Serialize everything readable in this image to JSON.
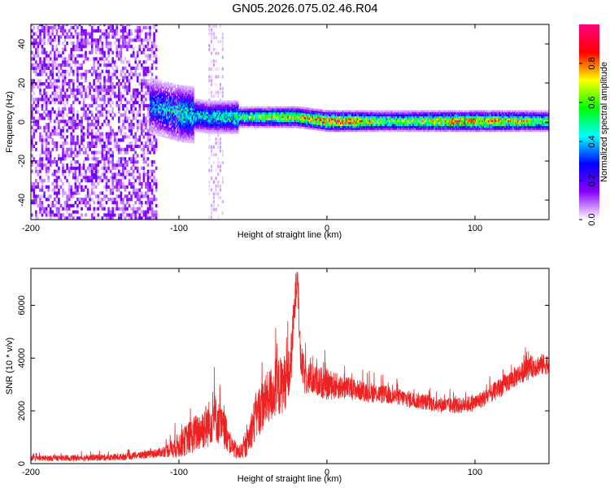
{
  "title": "GN05.2026.075.02.46.R04",
  "chart_data": [
    {
      "type": "heatmap",
      "xlabel": "Height of straight line (km)",
      "ylabel": "Frequency (Hz)",
      "xlim": [
        -200,
        150
      ],
      "ylim": [
        -50,
        50
      ],
      "xticks": [
        -200,
        -100,
        0,
        100
      ],
      "yticks": [
        -40,
        -20,
        0,
        20,
        40
      ],
      "grid": false,
      "colorbar": {
        "label": "Normalized spectral amplitude",
        "range": [
          0.0,
          1.0
        ],
        "ticks": [
          "0.0",
          "0.2",
          "0.4",
          "0.6",
          "0.8"
        ],
        "tick_values": [
          0.0,
          0.2,
          0.4,
          0.6,
          0.8
        ],
        "colors": [
          "#ffffff",
          "#8800ff",
          "#0000ff",
          "#00ffff",
          "#00ff00",
          "#ffff00",
          "#ff0000",
          "#ff0080"
        ]
      },
      "features": [
        {
          "desc": "broadband noise",
          "x_range": [
            -200,
            -115
          ],
          "y_range": [
            -50,
            50
          ],
          "amplitude": 0.15
        },
        {
          "desc": "faint vertical streak",
          "x_range": [
            -80,
            -70
          ],
          "y_range": [
            -50,
            50
          ],
          "amplitude": 0.05
        },
        {
          "desc": "signal band",
          "x": [
            -120,
            -100,
            -80,
            -60,
            -40,
            -20,
            0,
            20,
            40,
            60,
            80,
            100,
            120,
            150
          ],
          "y": [
            8,
            4,
            2,
            2,
            2,
            2,
            0,
            0,
            0,
            0,
            0,
            0,
            0,
            0
          ],
          "amplitude": [
            0.35,
            0.5,
            0.45,
            0.55,
            0.7,
            0.75,
            0.9,
            0.85,
            0.6,
            0.7,
            0.8,
            0.85,
            0.8,
            0.6
          ]
        }
      ]
    },
    {
      "type": "line",
      "xlabel": "Height of straight line (km)",
      "ylabel": "SNR (10 * v/v)",
      "xlim": [
        -200,
        150
      ],
      "ylim": [
        0,
        7400
      ],
      "xticks": [
        -200,
        -100,
        0,
        100
      ],
      "yticks": [
        0,
        2000,
        4000,
        6000
      ],
      "grid": false,
      "series": [
        {
          "color": "#ee2222",
          "x": [
            -200,
            -180,
            -160,
            -140,
            -120,
            -110,
            -100,
            -90,
            -80,
            -76,
            -72,
            -68,
            -65,
            -60,
            -55,
            -50,
            -45,
            -40,
            -35,
            -30,
            -25,
            -22,
            -20,
            -18,
            -15,
            -10,
            -5,
            0,
            10,
            20,
            30,
            40,
            50,
            60,
            70,
            80,
            90,
            100,
            110,
            120,
            130,
            140,
            150
          ],
          "y": [
            200,
            210,
            220,
            250,
            350,
            450,
            700,
            1100,
            1500,
            1800,
            1400,
            1200,
            700,
            400,
            600,
            1500,
            2100,
            2500,
            2800,
            3000,
            3400,
            5800,
            7400,
            4000,
            3300,
            3200,
            3100,
            3000,
            2900,
            2800,
            2700,
            2600,
            2500,
            2400,
            2300,
            2200,
            2200,
            2300,
            2600,
            3000,
            3400,
            3700,
            3800
          ],
          "noise": [
            100,
            110,
            120,
            130,
            150,
            200,
            500,
            700,
            900,
            900,
            800,
            700,
            400,
            300,
            400,
            800,
            1000,
            1000,
            1200,
            1100,
            1000,
            800,
            600,
            700,
            700,
            600,
            600,
            600,
            450,
            400,
            380,
            350,
            330,
            320,
            310,
            300,
            300,
            320,
            350,
            380,
            400,
            420,
            400
          ]
        }
      ]
    }
  ]
}
